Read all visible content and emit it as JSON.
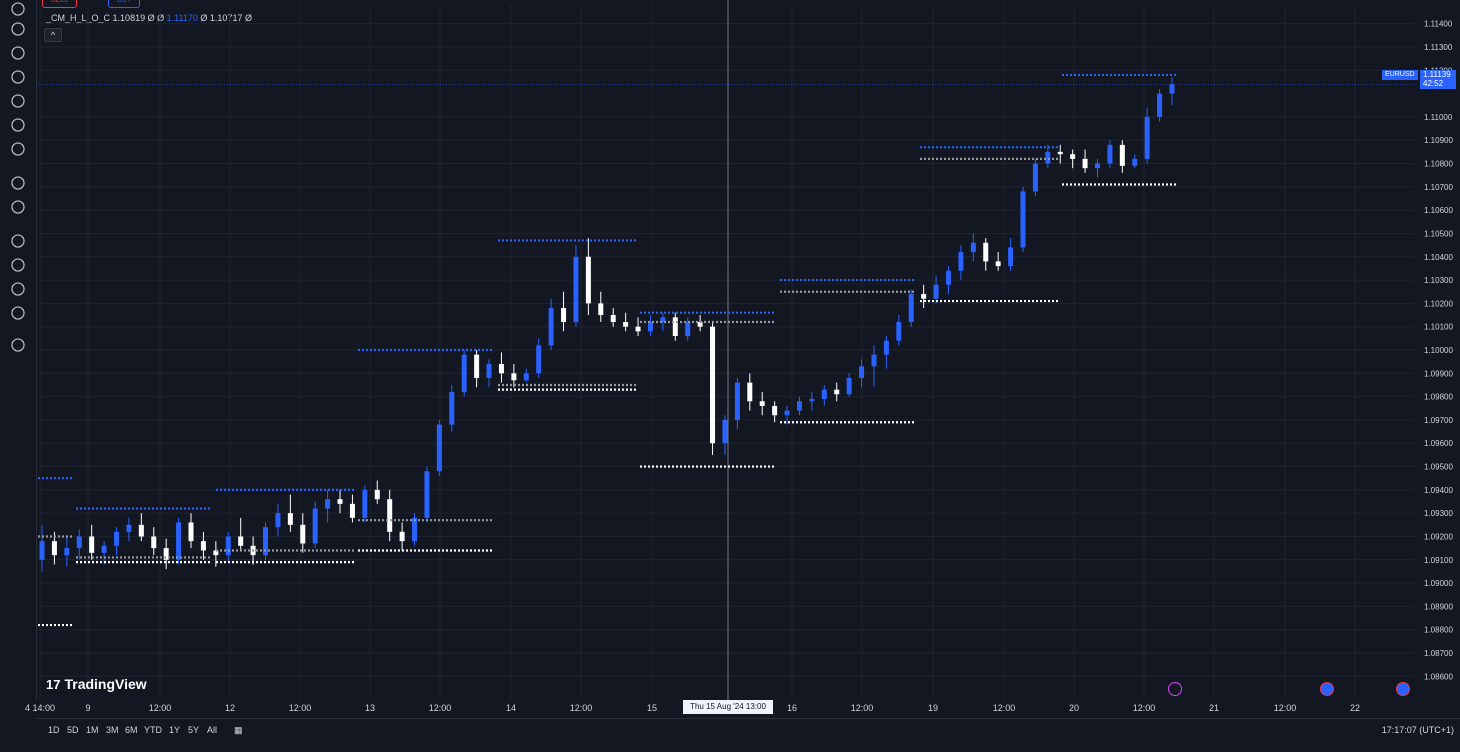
{
  "toolbar": {
    "tools": [
      "crosshair-icon",
      "lines-icon",
      "pattern-icon",
      "fib-icon",
      "brush-icon",
      "text-icon",
      "emoji-icon",
      "ruler-icon",
      "zoom-icon",
      "magnet-icon",
      "lock-drawing-icon",
      "lock-icon",
      "eye-icon",
      "trash-icon"
    ]
  },
  "trade_buttons": {
    "sell": "SELL",
    "buy": "BUY"
  },
  "legend": {
    "indicator": "_CM_H_L_O_C",
    "v1": "1.10819",
    "s1": "Ø",
    "s2": "Ø",
    "v2": "1.11170",
    "s3": "Ø",
    "v3": "1.10717",
    "s4": "Ø"
  },
  "collapse": "^",
  "symbol": "EURUSD",
  "last_price": "1.11139",
  "countdown": "42:52",
  "crosshair_time": "Thu 15 Aug '24  13:00",
  "logo_text": "TradingView",
  "logo_mark": "17",
  "ranges": [
    "1D",
    "5D",
    "1M",
    "3M",
    "6M",
    "YTD",
    "1Y",
    "5Y",
    "All"
  ],
  "clock": "17:17:07 (UTC+1)",
  "colors": {
    "bg": "#131722",
    "up": "#2962ff",
    "down": "#ffffff",
    "grid": "#1f2330",
    "gray_level": "#9598a1"
  },
  "chart_data": {
    "type": "candlestick",
    "symbol": "EURUSD",
    "timeframe": "1h",
    "price_axis": [
      "1.11400",
      "1.11300",
      "1.11200",
      "1.11000",
      "1.10900",
      "1.10800",
      "1.10700",
      "1.10600",
      "1.10500",
      "1.10400",
      "1.10300",
      "1.10200",
      "1.10100",
      "1.10000",
      "1.09900",
      "1.09800",
      "1.09700",
      "1.09600",
      "1.09500",
      "1.09400",
      "1.09300",
      "1.09200",
      "1.09100",
      "1.09000",
      "1.08900",
      "1.08800",
      "1.08700",
      "1.08600"
    ],
    "time_axis": [
      {
        "label": "4 14:00",
        "date": "2024-08-08 14:00"
      },
      {
        "label": "9",
        "date": "2024-08-09 00:00"
      },
      {
        "label": "12:00",
        "date": "2024-08-09 12:00"
      },
      {
        "label": "12",
        "date": "2024-08-12 00:00"
      },
      {
        "label": "12:00",
        "date": "2024-08-12 12:00"
      },
      {
        "label": "13",
        "date": "2024-08-13 00:00"
      },
      {
        "label": "12:00",
        "date": "2024-08-13 12:00"
      },
      {
        "label": "14",
        "date": "2024-08-14 00:00"
      },
      {
        "label": "12:00",
        "date": "2024-08-14 12:00"
      },
      {
        "label": "15",
        "date": "2024-08-15 00:00"
      },
      {
        "label": "16",
        "date": "2024-08-16 00:00"
      },
      {
        "label": "12:00",
        "date": "2024-08-16 12:00"
      },
      {
        "label": "19",
        "date": "2024-08-19 00:00"
      },
      {
        "label": "12:00",
        "date": "2024-08-19 12:00"
      },
      {
        "label": "20",
        "date": "2024-08-20 00:00"
      },
      {
        "label": "12:00",
        "date": "2024-08-20 12:00"
      },
      {
        "label": "21",
        "date": "2024-08-21 00:00"
      },
      {
        "label": "12:00",
        "date": "2024-08-21 12:00"
      },
      {
        "label": "22",
        "date": "2024-08-22 00:00"
      }
    ],
    "y_range": [
      1.0855,
      1.1145
    ],
    "series": [
      {
        "name": "EURUSD",
        "ohlc": [
          [
            1.091,
            1.0925,
            1.0905,
            1.0918
          ],
          [
            1.0918,
            1.0922,
            1.0908,
            1.0912
          ],
          [
            1.0912,
            1.092,
            1.0907,
            1.0915
          ],
          [
            1.0915,
            1.0923,
            1.091,
            1.092
          ],
          [
            1.092,
            1.0925,
            1.091,
            1.0913
          ],
          [
            1.0913,
            1.0918,
            1.0908,
            1.0916
          ],
          [
            1.0916,
            1.0924,
            1.0912,
            1.0922
          ],
          [
            1.0922,
            1.0928,
            1.0918,
            1.0925
          ],
          [
            1.0925,
            1.093,
            1.0918,
            1.092
          ],
          [
            1.092,
            1.0924,
            1.0912,
            1.0915
          ],
          [
            1.0915,
            1.0919,
            1.0906,
            1.091
          ],
          [
            1.091,
            1.0928,
            1.0908,
            1.0926
          ],
          [
            1.0926,
            1.093,
            1.0915,
            1.0918
          ],
          [
            1.0918,
            1.0922,
            1.091,
            1.0914
          ],
          [
            1.0914,
            1.0918,
            1.0907,
            1.0912
          ],
          [
            1.0912,
            1.0922,
            1.0909,
            1.092
          ],
          [
            1.092,
            1.0928,
            1.0914,
            1.0916
          ],
          [
            1.0916,
            1.092,
            1.0908,
            1.0912
          ],
          [
            1.0912,
            1.0926,
            1.091,
            1.0924
          ],
          [
            1.0924,
            1.0934,
            1.092,
            1.093
          ],
          [
            1.093,
            1.0938,
            1.0922,
            1.0925
          ],
          [
            1.0925,
            1.093,
            1.0913,
            1.0917
          ],
          [
            1.0917,
            1.0935,
            1.0915,
            1.0932
          ],
          [
            1.0932,
            1.094,
            1.0926,
            1.0936
          ],
          [
            1.0936,
            1.094,
            1.093,
            1.0934
          ],
          [
            1.0934,
            1.0938,
            1.0926,
            1.0928
          ],
          [
            1.0928,
            1.0942,
            1.0926,
            1.094
          ],
          [
            1.094,
            1.0944,
            1.0934,
            1.0936
          ],
          [
            1.0936,
            1.094,
            1.0918,
            1.0922
          ],
          [
            1.0922,
            1.0926,
            1.0914,
            1.0918
          ],
          [
            1.0918,
            1.093,
            1.0916,
            1.0928
          ],
          [
            1.0928,
            1.095,
            1.0926,
            1.0948
          ],
          [
            1.0948,
            1.097,
            1.0946,
            1.0968
          ],
          [
            1.0968,
            1.0985,
            1.0965,
            1.0982
          ],
          [
            1.0982,
            1.1,
            1.098,
            1.0998
          ],
          [
            1.0998,
            1.1,
            1.0984,
            1.0988
          ],
          [
            1.0988,
            1.0996,
            1.0984,
            1.0994
          ],
          [
            1.0994,
            1.0999,
            1.0986,
            1.099
          ],
          [
            1.099,
            1.0994,
            1.0984,
            1.0987
          ],
          [
            1.0987,
            1.0992,
            1.0986,
            1.099
          ],
          [
            1.099,
            1.1005,
            1.0988,
            1.1002
          ],
          [
            1.1002,
            1.1022,
            1.1,
            1.1018
          ],
          [
            1.1018,
            1.1025,
            1.1008,
            1.1012
          ],
          [
            1.1012,
            1.1045,
            1.101,
            1.104
          ],
          [
            1.104,
            1.1048,
            1.1015,
            1.102
          ],
          [
            1.102,
            1.1025,
            1.1012,
            1.1015
          ],
          [
            1.1015,
            1.1018,
            1.101,
            1.1012
          ],
          [
            1.1012,
            1.1016,
            1.1008,
            1.101
          ],
          [
            1.101,
            1.1014,
            1.1006,
            1.1008
          ],
          [
            1.1008,
            1.1015,
            1.1006,
            1.1012
          ],
          [
            1.1012,
            1.1016,
            1.1008,
            1.1014
          ],
          [
            1.1014,
            1.1016,
            1.1004,
            1.1006
          ],
          [
            1.1006,
            1.1014,
            1.1004,
            1.1012
          ],
          [
            1.1012,
            1.1015,
            1.1008,
            1.101
          ],
          [
            1.101,
            1.1012,
            1.0955,
            1.096
          ],
          [
            1.096,
            1.0972,
            1.0955,
            1.097
          ],
          [
            1.097,
            1.0988,
            1.0966,
            1.0986
          ],
          [
            1.0986,
            1.099,
            1.0974,
            1.0978
          ],
          [
            1.0978,
            1.0982,
            1.0972,
            1.0976
          ],
          [
            1.0976,
            1.0978,
            1.0969,
            1.0972
          ],
          [
            1.0972,
            1.0976,
            1.0968,
            1.0974
          ],
          [
            1.0974,
            1.098,
            1.0972,
            1.0978
          ],
          [
            1.0978,
            1.0982,
            1.0974,
            1.0979
          ],
          [
            1.0979,
            1.0985,
            1.0976,
            1.0983
          ],
          [
            1.0983,
            1.0986,
            1.0978,
            1.0981
          ],
          [
            1.0981,
            1.099,
            1.098,
            1.0988
          ],
          [
            1.0988,
            1.0996,
            1.0984,
            1.0993
          ],
          [
            1.0993,
            1.1002,
            1.0984,
            1.0998
          ],
          [
            1.0998,
            1.1006,
            1.0992,
            1.1004
          ],
          [
            1.1004,
            1.1015,
            1.1002,
            1.1012
          ],
          [
            1.1012,
            1.1026,
            1.101,
            1.1024
          ],
          [
            1.1024,
            1.1028,
            1.1018,
            1.1022
          ],
          [
            1.1022,
            1.1032,
            1.102,
            1.1028
          ],
          [
            1.1028,
            1.1036,
            1.1024,
            1.1034
          ],
          [
            1.1034,
            1.1045,
            1.103,
            1.1042
          ],
          [
            1.1042,
            1.105,
            1.1038,
            1.1046
          ],
          [
            1.1046,
            1.1048,
            1.1034,
            1.1038
          ],
          [
            1.1038,
            1.1042,
            1.1034,
            1.1036
          ],
          [
            1.1036,
            1.1048,
            1.1034,
            1.1044
          ],
          [
            1.1044,
            1.107,
            1.1042,
            1.1068
          ],
          [
            1.1068,
            1.1082,
            1.1066,
            1.108
          ],
          [
            1.108,
            1.1088,
            1.1078,
            1.1085
          ],
          [
            1.1085,
            1.1088,
            1.108,
            1.1084
          ],
          [
            1.1084,
            1.1086,
            1.1078,
            1.1082
          ],
          [
            1.1082,
            1.1086,
            1.1076,
            1.1078
          ],
          [
            1.1078,
            1.1082,
            1.1074,
            1.108
          ],
          [
            1.108,
            1.109,
            1.1078,
            1.1088
          ],
          [
            1.1088,
            1.109,
            1.1076,
            1.1079
          ],
          [
            1.1079,
            1.1084,
            1.1078,
            1.1082
          ],
          [
            1.1082,
            1.1104,
            1.108,
            1.11
          ],
          [
            1.11,
            1.1112,
            1.1098,
            1.111
          ],
          [
            1.111,
            1.1117,
            1.1105,
            1.1114
          ]
        ]
      }
    ],
    "levels": [
      {
        "name": "prev_high",
        "color": "blue",
        "segments": [
          [
            1.0945
          ],
          [
            1.0932
          ],
          [
            1.094
          ],
          [
            1.1
          ],
          [
            1.1047
          ],
          [
            1.1016
          ],
          [
            1.103
          ],
          [
            1.1087
          ],
          [
            1.1118
          ]
        ]
      },
      {
        "name": "prev_close",
        "color": "gray",
        "segments": [
          [
            1.092
          ],
          [
            1.0911
          ],
          [
            1.0914
          ],
          [
            1.0927
          ],
          [
            1.0985
          ],
          [
            1.1012
          ],
          [
            1.1025
          ],
          [
            1.1082
          ]
        ]
      },
      {
        "name": "prev_low",
        "color": "white",
        "segments": [
          [
            1.0882
          ],
          [
            1.0909
          ],
          [
            1.0909
          ],
          [
            1.0914
          ],
          [
            1.0983
          ],
          [
            1.095
          ],
          [
            1.0969
          ],
          [
            1.1021
          ],
          [
            1.1071
          ]
        ]
      }
    ],
    "grid": true,
    "legend_position": "top-left"
  }
}
